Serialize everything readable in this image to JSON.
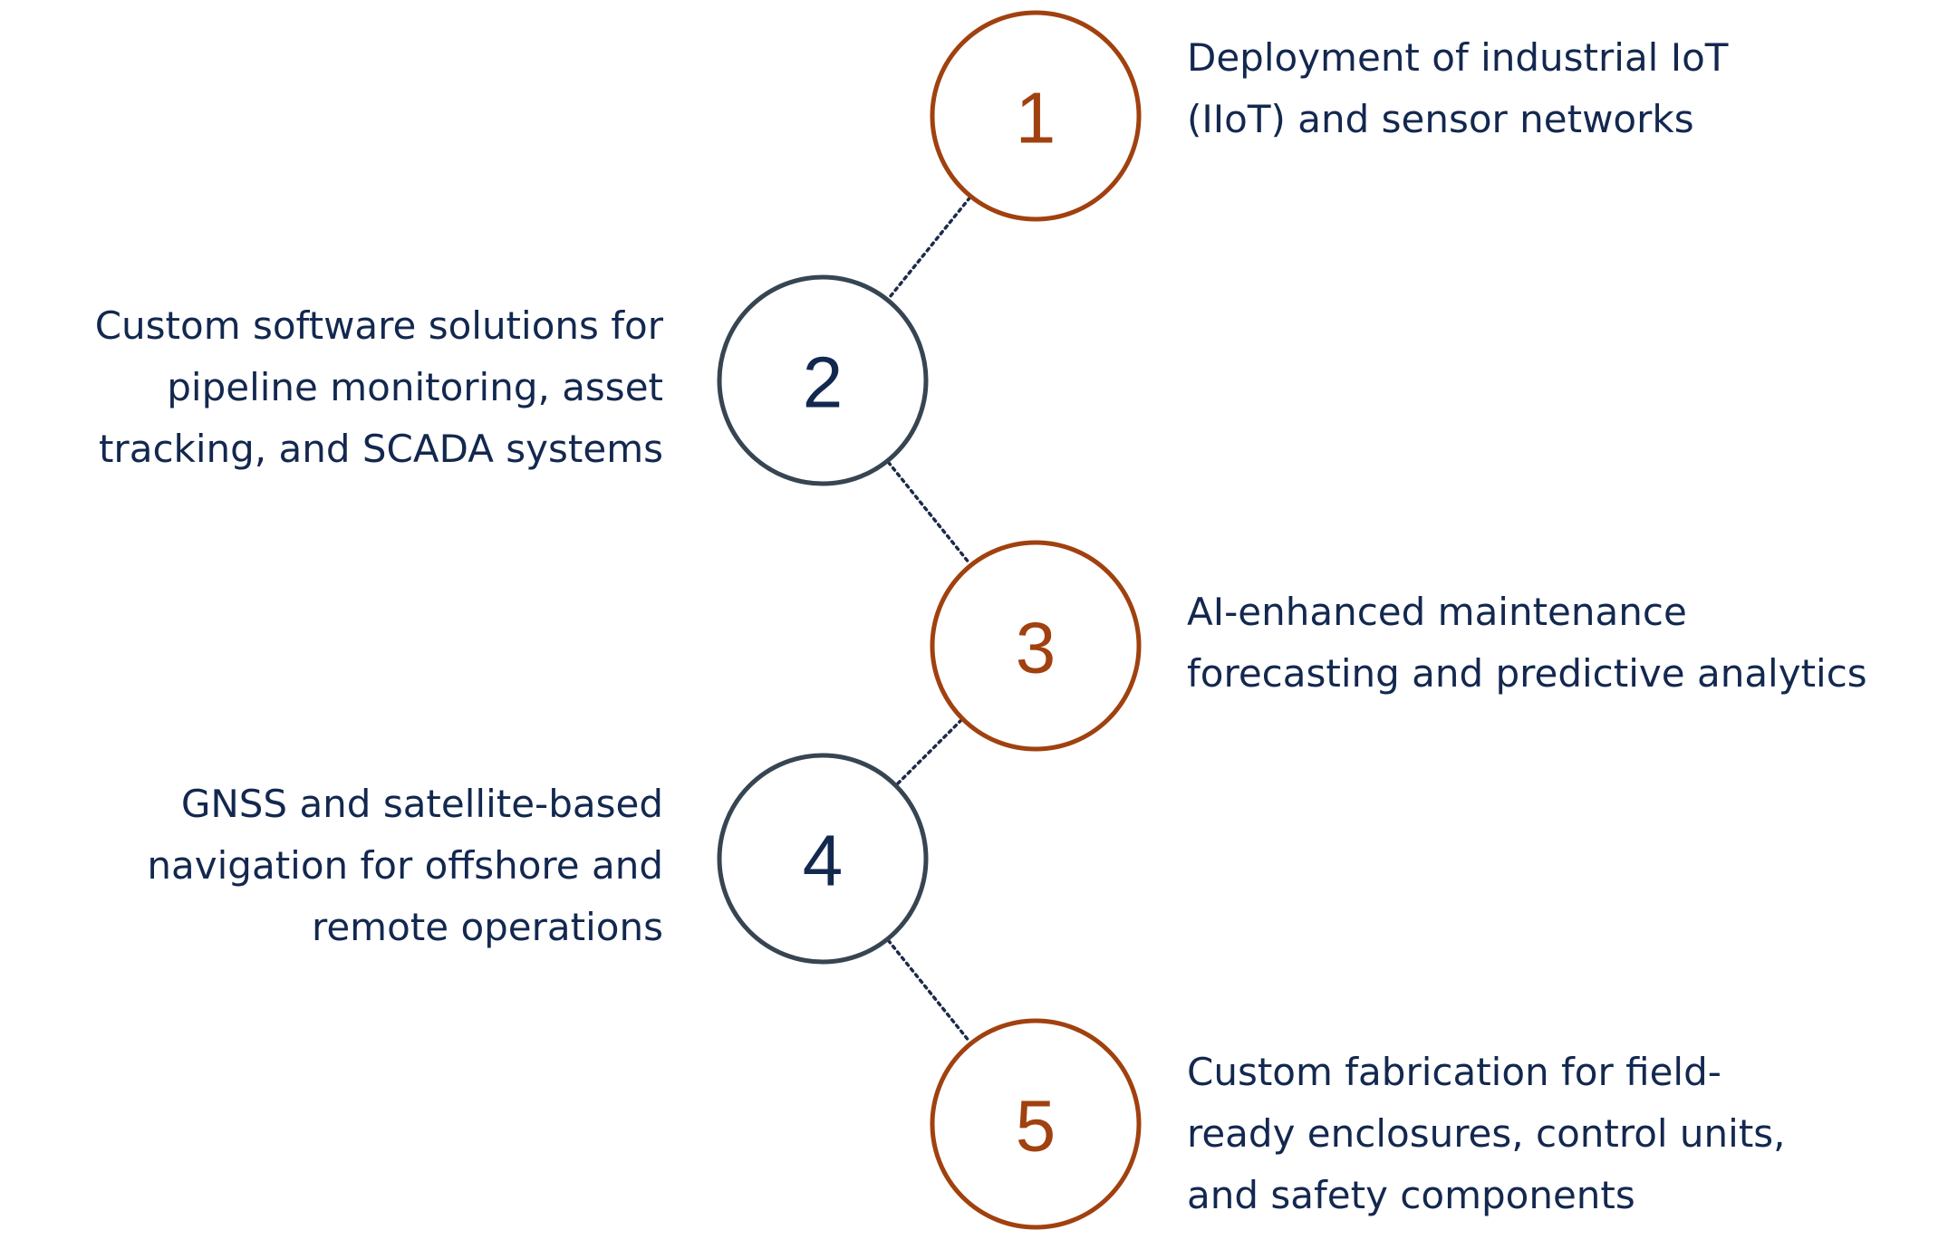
{
  "colors": {
    "accent": "#a0410f",
    "dark": "#364551",
    "text": "#13284f",
    "connector": "#1c2b4a"
  },
  "steps": [
    {
      "number": "1",
      "color": "accent",
      "side": "right",
      "lines": [
        "Deployment of industrial IoT",
        "(IIoT) and sensor networks"
      ]
    },
    {
      "number": "2",
      "color": "dark",
      "side": "left",
      "lines": [
        "Custom software solutions for",
        "pipeline monitoring, asset",
        "tracking, and SCADA systems"
      ]
    },
    {
      "number": "3",
      "color": "accent",
      "side": "right",
      "lines": [
        "AI-enhanced maintenance",
        "forecasting and predictive analytics"
      ]
    },
    {
      "number": "4",
      "color": "dark",
      "side": "left",
      "lines": [
        "GNSS and satellite-based",
        "navigation for offshore and",
        "remote operations"
      ]
    },
    {
      "number": "5",
      "color": "accent",
      "side": "right",
      "lines": [
        "Custom fabrication for field-",
        "ready enclosures, control units,",
        "and safety components"
      ]
    }
  ]
}
